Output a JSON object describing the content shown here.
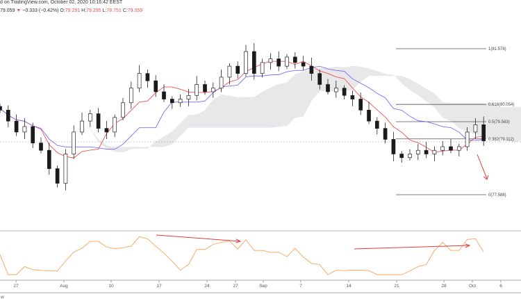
{
  "header": {
    "published": "d on TradingView.com, October 02, 2020 10:16:42 EEST",
    "last": "79.059",
    "change": "−0.333 (−0.42%)",
    "o_label": "O:",
    "o": "79.291",
    "h_label": "H:",
    "h": "79.295",
    "l_label": "L:",
    "l": "78.751",
    "c_label": "C:",
    "c": "79.059"
  },
  "colors": {
    "up": "#ffffff",
    "down": "#1a1a1a",
    "tenkan": "#ef5350",
    "kijun": "#7b6cf6",
    "cloud": "#e8e8ea",
    "osc": "#f7a35c",
    "arrow": "#e53935"
  },
  "fib_levels": [
    {
      "ratio": 1,
      "price": 81.578,
      "label": "1(81.578)"
    },
    {
      "ratio": 0.618,
      "price": 80.054,
      "label": "0.618(80.054)"
    },
    {
      "ratio": 0.5,
      "price": 79.583,
      "label": "0.5(79.583)"
    },
    {
      "ratio": 0.382,
      "price": 79.112,
      "label": "0.382(79.112)"
    },
    {
      "ratio": 0,
      "price": 77.588,
      "label": "0(77.588)"
    }
  ],
  "x_axis": [
    "27",
    "Aug",
    "10",
    "17",
    "24",
    "27",
    "Sep",
    "7",
    "14",
    "21",
    "28",
    "Oct",
    "6"
  ],
  "footer_text": "w",
  "chart_data": {
    "type": "candlestick",
    "closes": [
      79.9,
      79.6,
      79.3,
      79.45,
      79.0,
      78.8,
      78.3,
      77.9,
      78.7,
      79.3,
      79.6,
      79.8,
      79.4,
      79.3,
      79.7,
      80.1,
      80.5,
      80.9,
      80.7,
      80.4,
      80.2,
      80.1,
      80.2,
      80.3,
      80.6,
      80.4,
      80.5,
      80.8,
      81.1,
      80.9,
      81.5,
      80.9,
      81.2,
      81.3,
      81.1,
      81.35,
      81.2,
      81.1,
      80.9,
      80.6,
      80.4,
      80.5,
      80.3,
      80.2,
      79.9,
      79.6,
      79.4,
      79.1,
      78.7,
      78.6,
      78.7,
      78.8,
      78.7,
      78.8,
      78.9,
      78.8,
      78.9,
      79.3,
      79.5,
      79.059
    ],
    "price_range": [
      77.0,
      82.6
    ],
    "indicators": [
      "Ichimoku Cloud",
      "Oscillator"
    ]
  }
}
